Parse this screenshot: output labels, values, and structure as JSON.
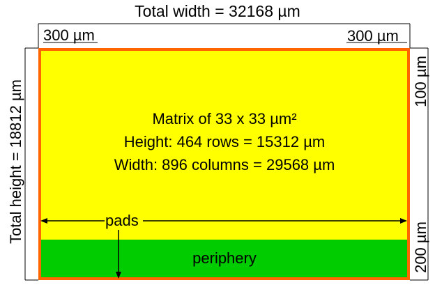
{
  "labels": {
    "total_width": "Total width = 32168 µm",
    "total_height": "Total height = 18812 µm",
    "margin_left": "300 µm",
    "margin_right": "300 µm",
    "margin_top": "100 µm",
    "margin_bottom": "200 µm",
    "matrix_line1": "Matrix of 33 x 33 µm²",
    "matrix_line2": "Height: 464 rows = 15312 µm",
    "matrix_line3": "Width: 896 columns = 29568 µm",
    "pads": "pads",
    "periphery": "periphery"
  },
  "colors": {
    "matrix": "#ffff00",
    "periphery": "#00cc00",
    "pads_border": "#ff6600",
    "frame": "#000000"
  }
}
